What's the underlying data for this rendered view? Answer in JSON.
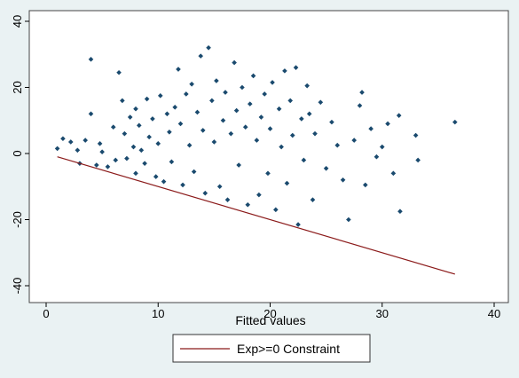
{
  "chart_data": {
    "type": "scatter",
    "title": "",
    "xlabel": "Fitted values",
    "ylabel": "",
    "xlim": [
      0,
      40
    ],
    "ylim": [
      -40,
      40
    ],
    "x_ticks": [
      0,
      10,
      20,
      30,
      40
    ],
    "y_ticks": [
      -40,
      -20,
      0,
      20,
      40
    ],
    "grid": false,
    "legend": {
      "position": "bottom-center",
      "entries": [
        {
          "label": "Exp>=0 Constraint",
          "style": "line",
          "color": "#8b1a1a"
        }
      ]
    },
    "colors": {
      "points": "#1a4a6e",
      "constraint_line": "#8b1a1a",
      "plot_background": "#ffffff",
      "outer_background": "#eaf2f3"
    },
    "series": [
      {
        "type": "scatter",
        "marker": "diamond",
        "color": "#1a4a6e",
        "points": [
          [
            1.0,
            1.5
          ],
          [
            1.5,
            4.5
          ],
          [
            2.2,
            3.5
          ],
          [
            2.8,
            1.0
          ],
          [
            3.0,
            -3.0
          ],
          [
            3.5,
            4.0
          ],
          [
            4.0,
            28.5
          ],
          [
            4.0,
            12.0
          ],
          [
            4.5,
            -3.5
          ],
          [
            4.8,
            3.0
          ],
          [
            5.0,
            0.5
          ],
          [
            5.5,
            -4.0
          ],
          [
            6.0,
            8.0
          ],
          [
            6.2,
            -2.0
          ],
          [
            6.5,
            24.5
          ],
          [
            6.8,
            16.0
          ],
          [
            7.0,
            6.0
          ],
          [
            7.2,
            -1.5
          ],
          [
            7.5,
            11.0
          ],
          [
            7.8,
            2.0
          ],
          [
            8.0,
            13.5
          ],
          [
            8.0,
            -6.0
          ],
          [
            8.3,
            8.5
          ],
          [
            8.5,
            1.0
          ],
          [
            8.8,
            -3.0
          ],
          [
            9.0,
            16.5
          ],
          [
            9.2,
            5.0
          ],
          [
            9.5,
            10.5
          ],
          [
            9.8,
            -7.0
          ],
          [
            10.0,
            3.0
          ],
          [
            10.2,
            17.5
          ],
          [
            10.5,
            -8.5
          ],
          [
            10.8,
            12.0
          ],
          [
            11.0,
            6.5
          ],
          [
            11.2,
            -2.5
          ],
          [
            11.5,
            14.0
          ],
          [
            11.8,
            25.5
          ],
          [
            12.0,
            9.0
          ],
          [
            12.2,
            -9.5
          ],
          [
            12.5,
            18.0
          ],
          [
            12.8,
            2.5
          ],
          [
            13.0,
            21.0
          ],
          [
            13.2,
            -5.5
          ],
          [
            13.5,
            12.5
          ],
          [
            13.8,
            29.5
          ],
          [
            14.0,
            7.0
          ],
          [
            14.2,
            -12.0
          ],
          [
            14.5,
            32.0
          ],
          [
            14.8,
            16.0
          ],
          [
            15.0,
            3.5
          ],
          [
            15.2,
            22.0
          ],
          [
            15.5,
            -10.0
          ],
          [
            15.8,
            10.0
          ],
          [
            16.0,
            18.5
          ],
          [
            16.2,
            -14.0
          ],
          [
            16.5,
            6.0
          ],
          [
            16.8,
            27.5
          ],
          [
            17.0,
            13.0
          ],
          [
            17.2,
            -3.5
          ],
          [
            17.5,
            20.0
          ],
          [
            17.8,
            8.0
          ],
          [
            18.0,
            -15.5
          ],
          [
            18.2,
            15.0
          ],
          [
            18.5,
            23.5
          ],
          [
            18.8,
            4.0
          ],
          [
            19.0,
            -12.5
          ],
          [
            19.2,
            11.0
          ],
          [
            19.5,
            18.0
          ],
          [
            19.8,
            -6.0
          ],
          [
            20.0,
            7.5
          ],
          [
            20.2,
            21.5
          ],
          [
            20.5,
            -17.0
          ],
          [
            20.8,
            13.5
          ],
          [
            21.0,
            2.0
          ],
          [
            21.3,
            25.0
          ],
          [
            21.5,
            -9.0
          ],
          [
            21.8,
            16.0
          ],
          [
            22.0,
            5.5
          ],
          [
            22.3,
            26.0
          ],
          [
            22.5,
            -21.5
          ],
          [
            22.8,
            10.5
          ],
          [
            23.0,
            -2.0
          ],
          [
            23.3,
            20.5
          ],
          [
            23.5,
            12.0
          ],
          [
            23.8,
            -14.0
          ],
          [
            24.0,
            6.0
          ],
          [
            24.5,
            15.5
          ],
          [
            25.0,
            -4.5
          ],
          [
            25.5,
            9.5
          ],
          [
            26.0,
            2.5
          ],
          [
            26.5,
            -8.0
          ],
          [
            27.0,
            -20.0
          ],
          [
            27.5,
            4.0
          ],
          [
            28.0,
            14.5
          ],
          [
            28.2,
            18.5
          ],
          [
            28.5,
            -9.5
          ],
          [
            29.0,
            7.5
          ],
          [
            29.5,
            -1.0
          ],
          [
            30.0,
            2.0
          ],
          [
            30.5,
            9.0
          ],
          [
            31.0,
            -6.0
          ],
          [
            31.5,
            11.5
          ],
          [
            31.6,
            -17.5
          ],
          [
            33.0,
            5.5
          ],
          [
            33.2,
            -2.0
          ],
          [
            36.5,
            9.5
          ]
        ]
      },
      {
        "type": "line",
        "name": "Exp>=0 Constraint",
        "color": "#8b1a1a",
        "x": [
          1.0,
          36.5
        ],
        "y": [
          -1.0,
          -36.5
        ]
      }
    ]
  }
}
